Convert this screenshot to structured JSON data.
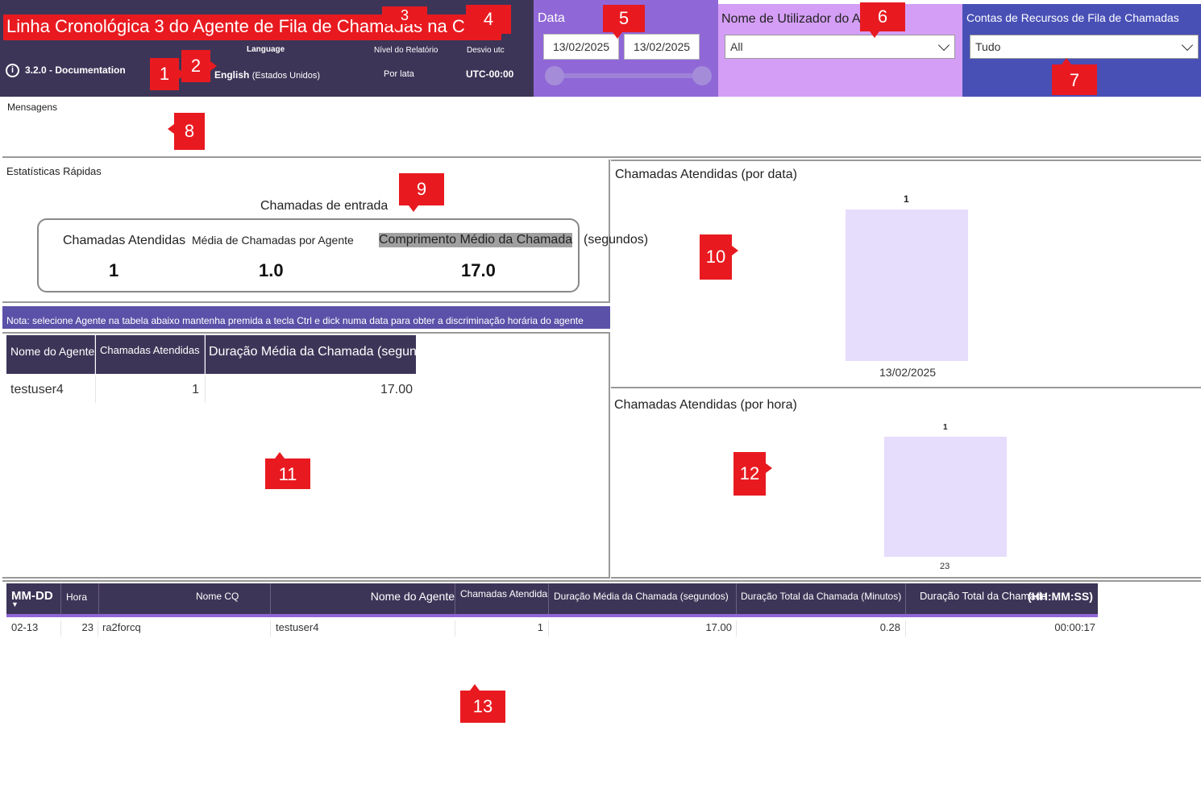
{
  "header": {
    "title": "Linha Cronológica 3 do Agente de Fila de Chamadas na Cloud",
    "version": "3.2.0 - Documentation",
    "language_label": "Language",
    "language_value": "English",
    "language_region": "(Estados Unidos)",
    "report_level_label": "Nível do Relatório",
    "report_level_value": "Por lata",
    "utc_label": "Desvio utc",
    "utc_value": "UTC-00:00"
  },
  "filters": {
    "date_label": "Data",
    "date_start": "13/02/2025",
    "date_end": "13/02/2025",
    "agent_label": "Nome de Utilizador do Agente",
    "agent_value": "All",
    "resource_label": "Contas de Recursos de Fila de Chamadas",
    "resource_value": "Tudo"
  },
  "messages": {
    "label": "Mensagens"
  },
  "quick_stats": {
    "label": "Estatísticas Rápidas",
    "subtitle": "Chamadas de entrada",
    "answered_label": "Chamadas Atendidas",
    "answered_value": "1",
    "avg_per_agent_label": "Média de Chamadas por Agente",
    "avg_per_agent_value": "1.0",
    "avg_length_label": "Comprimento Médio da Chamada",
    "avg_length_unit": "(segundos)",
    "avg_length_value": "17.0"
  },
  "note": "Nota: selecione Agente na tabela abaixo mantenha premida a tecla Ctrl e dick numa data para obter a discriminação horária do agente",
  "agent_table": {
    "columns": [
      "Nome do Agente",
      "Chamadas Atendidas",
      "Duração Média da Chamada (segun"
    ],
    "rows": [
      {
        "agent": "testuser4",
        "answered": "1",
        "avg_duration": "17.00"
      }
    ]
  },
  "chart_by_date": {
    "title": "Chamadas Atendidas (por data)",
    "bar_label": "1",
    "category": "13/02/2025"
  },
  "chart_by_hour": {
    "title": "Chamadas Atendidas (por hora)",
    "bar_label": "1",
    "category": "23"
  },
  "chart_data": [
    {
      "type": "bar",
      "title": "Chamadas Atendidas (por data)",
      "categories": [
        "13/02/2025"
      ],
      "values": [
        1
      ],
      "xlabel": "",
      "ylabel": ""
    },
    {
      "type": "bar",
      "title": "Chamadas Atendidas (por hora)",
      "categories": [
        "23"
      ],
      "values": [
        1
      ],
      "xlabel": "",
      "ylabel": ""
    }
  ],
  "detail_table": {
    "columns": [
      "MM-DD",
      "Hora",
      "Nome CQ",
      "Nome do Agente",
      "Chamadas Atendidas",
      "Duração Média da Chamada (segundos)",
      "Duração Total da Chamada (Minutos)",
      "Duração Total da Chamada",
      "(HH:MM:SS)"
    ],
    "rows": [
      {
        "mmdd": "02-13",
        "hora": "23",
        "cq": "ra2forcq",
        "agent": "testuser4",
        "answered": "1",
        "avg": "17.00",
        "total_min": "0.28",
        "total_hms": "00:00:17"
      }
    ]
  },
  "markers": [
    "1",
    "2",
    "3",
    "4",
    "5",
    "6",
    "7",
    "8",
    "9",
    "10",
    "11",
    "12",
    "13"
  ],
  "colors": {
    "header_bg": "#3d3557",
    "date_bg": "#8f67d6",
    "agent_bg": "#d49ef6",
    "resource_bg": "#4850b6",
    "marker": "#e81a20",
    "bar": "#e6dcfb"
  }
}
